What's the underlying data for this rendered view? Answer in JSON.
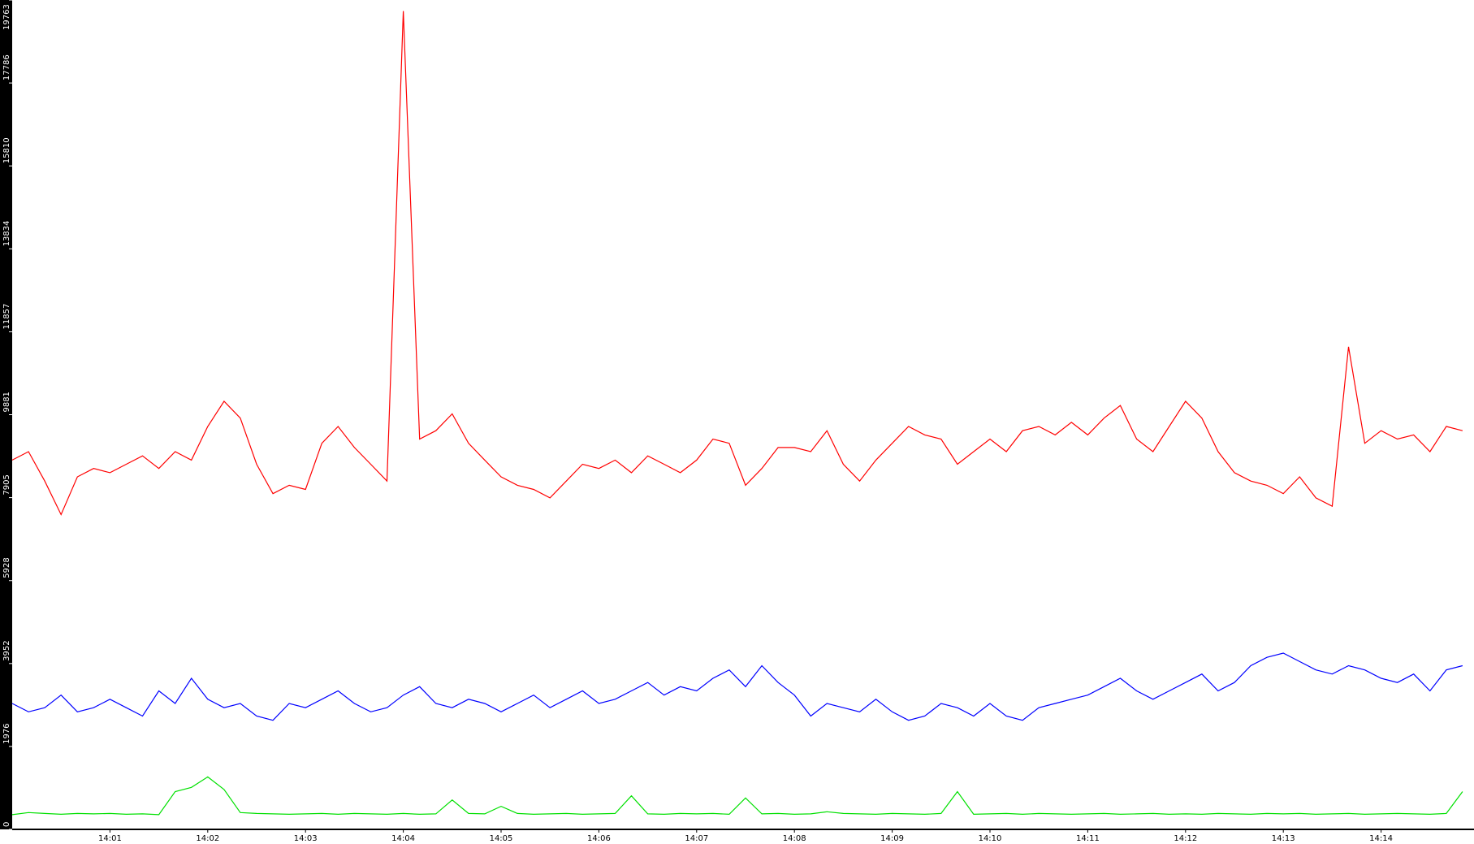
{
  "chart_data": {
    "type": "line",
    "categories": [
      null,
      null,
      null,
      null,
      null,
      null,
      "14:01",
      null,
      null,
      null,
      null,
      null,
      "14:02",
      null,
      null,
      null,
      null,
      null,
      "14:03",
      null,
      null,
      null,
      null,
      null,
      "14:04",
      null,
      null,
      null,
      null,
      null,
      "14:05",
      null,
      null,
      null,
      null,
      null,
      "14:06",
      null,
      null,
      null,
      null,
      null,
      "14:07",
      null,
      null,
      null,
      null,
      null,
      "14:08",
      null,
      null,
      null,
      null,
      null,
      "14:09",
      null,
      null,
      null,
      null,
      null,
      "14:10",
      null,
      null,
      null,
      null,
      null,
      "14:11",
      null,
      null,
      null,
      null,
      null,
      "14:12",
      null,
      null,
      null,
      null,
      null,
      "14:13",
      null,
      null,
      null,
      null,
      null,
      "14:14",
      null,
      null,
      null,
      null,
      null
    ],
    "series": [
      {
        "color": "#ff0000",
        "values": [
          8800,
          9000,
          8300,
          7500,
          8400,
          8600,
          8500,
          8700,
          8900,
          8600,
          9000,
          8800,
          9600,
          10200,
          9800,
          8700,
          8000,
          8200,
          8100,
          9200,
          9600,
          9100,
          8700,
          8300,
          19500,
          9300,
          9500,
          9900,
          9200,
          8800,
          8400,
          8200,
          8100,
          7900,
          8300,
          8700,
          8600,
          8800,
          8500,
          8900,
          8700,
          8500,
          8800,
          9300,
          9200,
          8200,
          8600,
          9100,
          9100,
          9000,
          9500,
          8700,
          8300,
          8800,
          9200,
          9600,
          9400,
          9300,
          8700,
          9000,
          9300,
          9000,
          9500,
          9600,
          9400,
          9700,
          9400,
          9800,
          10100,
          9300,
          9000,
          9600,
          10200,
          9800,
          9000,
          8500,
          8300,
          8200,
          8000,
          8400,
          7900,
          7700,
          11500,
          9200,
          9500,
          9300,
          9400,
          9000,
          9600,
          9500
        ]
      },
      {
        "color": "#0000ff",
        "values": [
          3000,
          2800,
          2900,
          3200,
          2800,
          2900,
          3100,
          2900,
          2700,
          3300,
          3000,
          3600,
          3100,
          2900,
          3000,
          2700,
          2600,
          3000,
          2900,
          3100,
          3300,
          3000,
          2800,
          2900,
          3200,
          3400,
          3000,
          2900,
          3100,
          3000,
          2800,
          3000,
          3200,
          2900,
          3100,
          3300,
          3000,
          3100,
          3300,
          3500,
          3200,
          3400,
          3300,
          3600,
          3800,
          3400,
          3900,
          3500,
          3200,
          2700,
          3000,
          2900,
          2800,
          3100,
          2800,
          2600,
          2700,
          3000,
          2900,
          2700,
          3000,
          2700,
          2600,
          2900,
          3000,
          3100,
          3200,
          3400,
          3600,
          3300,
          3100,
          3300,
          3500,
          3700,
          3300,
          3500,
          3900,
          4100,
          4200,
          4000,
          3800,
          3700,
          3900,
          3800,
          3600,
          3500,
          3700,
          3300,
          3800,
          3900
        ]
      },
      {
        "color": "#00e000",
        "values": [
          350,
          400,
          380,
          360,
          380,
          370,
          380,
          360,
          370,
          350,
          900,
          1000,
          1250,
          950,
          400,
          380,
          370,
          360,
          370,
          380,
          360,
          380,
          370,
          360,
          380,
          360,
          370,
          700,
          380,
          370,
          550,
          380,
          360,
          370,
          380,
          360,
          370,
          380,
          800,
          370,
          360,
          380,
          370,
          380,
          360,
          750,
          370,
          380,
          360,
          370,
          420,
          380,
          370,
          360,
          380,
          370,
          360,
          380,
          900,
          360,
          370,
          380,
          360,
          380,
          370,
          360,
          370,
          380,
          360,
          370,
          380,
          360,
          370,
          360,
          380,
          370,
          360,
          380,
          370,
          380,
          360,
          370,
          380,
          360,
          370,
          380,
          370,
          360,
          380,
          900
        ]
      }
    ],
    "ylim": [
      0,
      19763
    ],
    "yticks": [
      0,
      1976,
      3952,
      5928,
      7905,
      9881,
      11857,
      13834,
      15810,
      17786,
      19763
    ]
  }
}
